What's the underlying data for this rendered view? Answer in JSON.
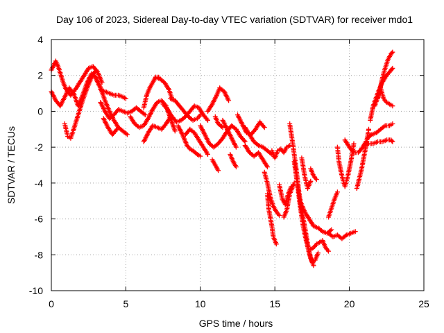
{
  "chart_data": {
    "type": "scatter",
    "title": "Day 106 of 2023, Sidereal Day-to-day VTEC variation (SDTVAR) for receiver mdo1",
    "xlabel": "GPS time / hours",
    "ylabel": "SDTVAR / TECUs",
    "xlim": [
      0,
      25
    ],
    "ylim": [
      -10,
      4
    ],
    "xticks": [
      "0",
      "5",
      "10",
      "15",
      "20",
      "25"
    ],
    "yticks": [
      "4",
      "2",
      "0",
      "-2",
      "-4",
      "-6",
      "-8",
      "-10"
    ],
    "grid": true,
    "marker": "+",
    "colors": {
      "series": "#ff0000",
      "grid": "#a0a0a0",
      "axis": "#000000"
    },
    "series": [
      {
        "tracks": [
          {
            "x": [
              0.0,
              0.3,
              0.5,
              0.8,
              1.0,
              1.3,
              1.6,
              1.9,
              2.2,
              2.5,
              2.8,
              3.1,
              3.4
            ],
            "y": [
              2.3,
              2.8,
              2.4,
              1.6,
              1.2,
              0.9,
              1.2,
              1.6,
              2.0,
              2.4,
              2.5,
              2.2,
              1.6
            ]
          },
          {
            "x": [
              0.0,
              0.3,
              0.6,
              0.9,
              1.2,
              1.5,
              1.8,
              2.1,
              2.4,
              2.7,
              3.0,
              3.3
            ],
            "y": [
              1.1,
              0.6,
              0.3,
              0.8,
              1.3,
              1.0,
              0.3,
              0.9,
              1.6,
              2.1,
              1.9,
              1.3
            ]
          },
          {
            "x": [
              0.9,
              1.1,
              1.3,
              1.5,
              1.8,
              2.1,
              2.4,
              2.7,
              3.0
            ],
            "y": [
              -0.7,
              -1.4,
              -1.5,
              -1.0,
              -0.2,
              0.6,
              1.3,
              1.9,
              2.3
            ]
          },
          {
            "x": [
              3.0,
              3.3,
              3.6,
              3.9,
              4.2,
              4.5,
              4.8,
              5.1
            ],
            "y": [
              1.8,
              1.3,
              0.6,
              0.0,
              -0.5,
              -0.9,
              -1.1,
              -1.3
            ]
          },
          {
            "x": [
              3.3,
              3.6,
              3.9,
              4.2,
              4.5,
              4.8,
              5.0
            ],
            "y": [
              1.2,
              1.1,
              1.0,
              0.9,
              0.9,
              0.8,
              0.7
            ]
          },
          {
            "x": [
              3.3,
              3.6,
              3.9,
              4.2,
              4.5,
              4.8,
              5.1,
              5.4,
              5.7,
              6.0,
              6.3
            ],
            "y": [
              0.5,
              0.0,
              -0.4,
              -0.2,
              0.1,
              0.0,
              -0.1,
              0.0,
              0.2,
              0.0,
              -0.2
            ]
          },
          {
            "x": [
              3.5,
              3.8,
              4.1,
              4.4
            ],
            "y": [
              -0.4,
              -0.9,
              -1.3,
              -1.0
            ]
          },
          {
            "x": [
              5.3,
              5.6,
              5.9,
              6.2,
              6.5,
              6.8,
              7.1,
              7.4,
              7.7,
              8.0,
              8.3
            ],
            "y": [
              -0.3,
              -0.7,
              -0.9,
              -0.8,
              -0.4,
              0.1,
              0.5,
              0.6,
              0.3,
              -0.4,
              -1.1
            ]
          },
          {
            "x": [
              6.2,
              6.4,
              6.6,
              6.8,
              7.0,
              7.2
            ],
            "y": [
              0.2,
              0.9,
              1.3,
              1.6,
              1.9,
              1.9
            ]
          },
          {
            "x": [
              7.0,
              7.3,
              7.6,
              7.9,
              8.1
            ],
            "y": [
              1.9,
              1.8,
              1.6,
              1.2,
              0.7
            ]
          },
          {
            "x": [
              6.2,
              6.5,
              6.8,
              7.1,
              7.4,
              7.7,
              8.0
            ],
            "y": [
              -1.7,
              -1.2,
              -0.8,
              -0.9,
              -1.0,
              -0.7,
              -0.3
            ]
          },
          {
            "x": [
              7.5,
              7.8,
              8.1,
              8.4,
              8.7,
              9.0,
              9.3,
              9.6,
              9.9,
              10.2,
              10.5
            ],
            "y": [
              0.4,
              0.1,
              -0.3,
              -0.6,
              -0.5,
              -0.3,
              0.0,
              0.3,
              0.2,
              -0.2,
              -0.5
            ]
          },
          {
            "x": [
              8.0,
              8.3,
              8.6,
              8.9,
              9.2,
              9.5,
              9.8,
              10.0
            ],
            "y": [
              0.7,
              0.6,
              0.3,
              0.0,
              -0.3,
              -0.5,
              -0.4,
              -0.2
            ]
          },
          {
            "x": [
              8.5,
              8.8,
              9.1,
              9.3,
              9.5,
              9.8,
              10.0
            ],
            "y": [
              -0.8,
              -1.3,
              -1.9,
              -2.1,
              -2.2,
              -2.4,
              -2.5
            ]
          },
          {
            "x": [
              9.0,
              9.3,
              9.6,
              9.9,
              10.2,
              10.5
            ],
            "y": [
              -1.3,
              -1.0,
              -1.2,
              -1.6,
              -2.0,
              -2.4
            ]
          },
          {
            "x": [
              10.5,
              10.8,
              11.1,
              11.3,
              11.6,
              11.9
            ],
            "y": [
              0.0,
              0.4,
              0.9,
              1.3,
              1.1,
              0.6
            ]
          },
          {
            "x": [
              10.0,
              10.3,
              10.6,
              10.9,
              11.2,
              11.5,
              11.8,
              12.1,
              12.4,
              12.7,
              13.0
            ],
            "y": [
              -0.8,
              -1.3,
              -1.8,
              -2.0,
              -1.8,
              -1.5,
              -1.1,
              -0.8,
              -1.0,
              -1.4,
              -1.7
            ]
          },
          {
            "x": [
              10.8,
              11.0,
              11.2
            ],
            "y": [
              -2.7,
              -3.0,
              -3.3
            ]
          },
          {
            "x": [
              11.0,
              11.2,
              11.5
            ],
            "y": [
              -0.3,
              -0.7,
              -0.9
            ]
          },
          {
            "x": [
              11.5,
              11.8,
              12.1,
              12.4
            ],
            "y": [
              -0.5,
              -1.0,
              -1.5,
              -2.0
            ]
          },
          {
            "x": [
              12.0,
              12.2,
              12.4
            ],
            "y": [
              -2.4,
              -2.8,
              -3.1
            ]
          },
          {
            "x": [
              12.5,
              12.8,
              13.1,
              13.4,
              13.7,
              14.0,
              14.3
            ],
            "y": [
              -0.2,
              -0.7,
              -1.2,
              -1.3,
              -1.0,
              -0.6,
              -0.9
            ]
          },
          {
            "x": [
              13.0,
              13.3,
              13.6,
              13.9,
              14.2,
              14.5,
              14.8
            ],
            "y": [
              -0.9,
              -1.3,
              -1.7,
              -1.9,
              -2.0,
              -2.2,
              -2.4
            ]
          },
          {
            "x": [
              13.0,
              13.3,
              13.6,
              13.9,
              14.2,
              14.5
            ],
            "y": [
              -1.9,
              -2.3,
              -2.5,
              -2.3,
              -2.7,
              -3.1
            ]
          },
          {
            "x": [
              14.3,
              14.5,
              14.7,
              14.9,
              15.1,
              15.3
            ],
            "y": [
              -3.4,
              -4.0,
              -4.8,
              -5.3,
              -5.6,
              -5.8
            ]
          },
          {
            "x": [
              14.5,
              14.6,
              14.8,
              14.9,
              15.1
            ],
            "y": [
              -4.6,
              -5.5,
              -6.4,
              -7.0,
              -7.4
            ]
          },
          {
            "x": [
              14.8,
              15.0,
              15.2,
              15.4,
              15.6,
              15.8,
              16.0
            ],
            "y": [
              -2.2,
              -2.6,
              -2.2,
              -2.1,
              -2.3,
              -2.0,
              -1.9
            ]
          },
          {
            "x": [
              15.3,
              15.5,
              15.7,
              15.9,
              16.1
            ],
            "y": [
              -4.1,
              -4.9,
              -5.2,
              -4.6,
              -4.2
            ]
          },
          {
            "x": [
              15.6,
              15.8,
              16.0,
              16.3
            ],
            "y": [
              -5.9,
              -5.5,
              -4.6,
              -4.0
            ]
          },
          {
            "x": [
              16.0,
              16.2,
              16.4,
              16.6,
              16.8,
              17.0,
              17.2,
              17.4,
              17.6
            ],
            "y": [
              -0.7,
              -1.8,
              -3.0,
              -4.4,
              -5.5,
              -6.4,
              -7.4,
              -8.2,
              -8.6
            ]
          },
          {
            "x": [
              16.3,
              16.5,
              16.7,
              16.9,
              17.1,
              17.3,
              17.5,
              17.7,
              17.9
            ],
            "y": [
              -2.8,
              -4.0,
              -5.3,
              -6.4,
              -7.2,
              -7.9,
              -8.4,
              -8.3,
              -7.9
            ]
          },
          {
            "x": [
              16.8,
              17.0,
              17.2,
              17.4
            ],
            "y": [
              -2.6,
              -3.6,
              -4.3,
              -3.9
            ]
          },
          {
            "x": [
              16.7,
              17.0,
              17.3,
              17.6,
              17.9,
              18.2,
              18.5,
              18.8
            ],
            "y": [
              -5.0,
              -5.6,
              -6.0,
              -6.4,
              -6.5,
              -6.7,
              -6.8,
              -6.6
            ]
          },
          {
            "x": [
              17.4,
              17.6,
              17.8,
              18.0,
              18.2,
              18.4,
              18.6
            ],
            "y": [
              -7.7,
              -7.6,
              -7.4,
              -7.3,
              -7.2,
              -7.6,
              -7.8
            ]
          },
          {
            "x": [
              17.4,
              17.6,
              17.8
            ],
            "y": [
              -3.2,
              -3.6,
              -3.8
            ]
          },
          {
            "x": [
              18.6,
              18.9,
              19.2,
              19.5,
              19.8,
              20.1,
              20.4
            ],
            "y": [
              -6.8,
              -7.0,
              -6.9,
              -7.1,
              -6.9,
              -6.8,
              -6.7
            ]
          },
          {
            "x": [
              18.6,
              18.8,
              19.0,
              19.2
            ],
            "y": [
              -5.9,
              -5.4,
              -4.9,
              -4.5
            ]
          },
          {
            "x": [
              19.2,
              19.3,
              19.5,
              19.7,
              19.9,
              20.1,
              20.3
            ],
            "y": [
              -2.0,
              -2.8,
              -3.6,
              -4.2,
              -3.6,
              -2.8,
              -1.8
            ]
          },
          {
            "x": [
              19.7,
              20.0,
              20.3,
              20.6,
              20.9,
              21.1
            ],
            "y": [
              -1.6,
              -2.0,
              -2.3,
              -2.3,
              -2.0,
              -1.7
            ]
          },
          {
            "x": [
              20.5,
              20.8,
              21.1,
              21.3
            ],
            "y": [
              -4.3,
              -3.3,
              -2.0,
              -1.0
            ]
          },
          {
            "x": [
              21.2,
              21.5,
              21.8,
              22.1,
              22.4,
              22.7,
              22.9
            ],
            "y": [
              -1.5,
              -1.3,
              -1.2,
              -1.0,
              -0.8,
              -0.8,
              -0.7
            ]
          },
          {
            "x": [
              21.0,
              21.3,
              21.6,
              21.9,
              22.2,
              22.5,
              22.8,
              22.9
            ],
            "y": [
              -1.9,
              -1.8,
              -1.8,
              -1.7,
              -1.7,
              -1.6,
              -1.6,
              -1.7
            ]
          },
          {
            "x": [
              21.4,
              21.6,
              21.9,
              22.2,
              22.5,
              22.8,
              22.9
            ],
            "y": [
              -0.5,
              0.3,
              1.0,
              1.6,
              2.0,
              2.3,
              2.4
            ]
          },
          {
            "x": [
              21.7,
              22.0,
              22.2,
              22.4,
              22.6,
              22.8,
              22.9
            ],
            "y": [
              0.3,
              1.0,
              1.8,
              2.4,
              2.9,
              3.2,
              3.3
            ]
          },
          {
            "x": [
              21.9,
              22.1,
              22.3,
              22.5,
              22.7,
              22.9
            ],
            "y": [
              0.7,
              1.3,
              0.7,
              0.5,
              0.4,
              0.3
            ]
          }
        ]
      }
    ]
  }
}
